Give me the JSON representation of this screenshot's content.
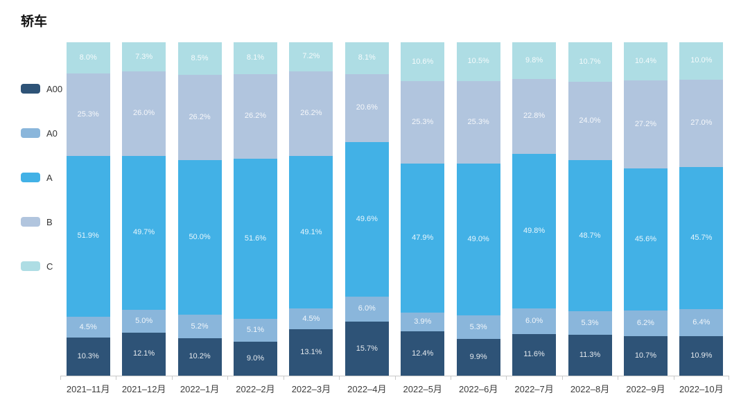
{
  "title": "轿车",
  "chart_data": {
    "type": "bar",
    "stacked": true,
    "percent_stacked": true,
    "title": "轿车",
    "unit": "%",
    "legend_position": "left",
    "grid": false,
    "ylim": [
      0,
      100
    ],
    "value_label_format": "{value}%",
    "categories": [
      "2021–11月",
      "2021–12月",
      "2022–1月",
      "2022–2月",
      "2022–3月",
      "2022–4月",
      "2022–5月",
      "2022–6月",
      "2022–7月",
      "2022–8月",
      "2022–9月",
      "2022–10月"
    ],
    "series": [
      {
        "name": "A00",
        "color": "#2e5377",
        "values": [
          10.3,
          12.1,
          10.2,
          9.0,
          13.1,
          15.7,
          12.4,
          9.9,
          11.6,
          11.3,
          10.7,
          10.9
        ]
      },
      {
        "name": "A0",
        "color": "#8ab6db",
        "values": [
          4.5,
          5.0,
          5.2,
          5.1,
          4.5,
          6.0,
          3.9,
          5.3,
          6.0,
          5.3,
          6.2,
          6.4
        ]
      },
      {
        "name": "A",
        "color": "#42b1e6",
        "values": [
          51.9,
          49.7,
          50.0,
          51.6,
          49.1,
          49.6,
          47.9,
          49.0,
          49.8,
          48.7,
          45.6,
          45.7
        ]
      },
      {
        "name": "B",
        "color": "#b1c5de",
        "values": [
          25.3,
          26.0,
          26.2,
          26.2,
          26.2,
          20.6,
          25.3,
          25.3,
          22.8,
          24.0,
          27.2,
          27.0
        ]
      },
      {
        "name": "C",
        "color": "#aedde4",
        "values": [
          8.0,
          7.3,
          8.5,
          8.1,
          7.2,
          8.1,
          10.6,
          10.5,
          9.8,
          10.7,
          10.4,
          10.0
        ]
      }
    ]
  }
}
